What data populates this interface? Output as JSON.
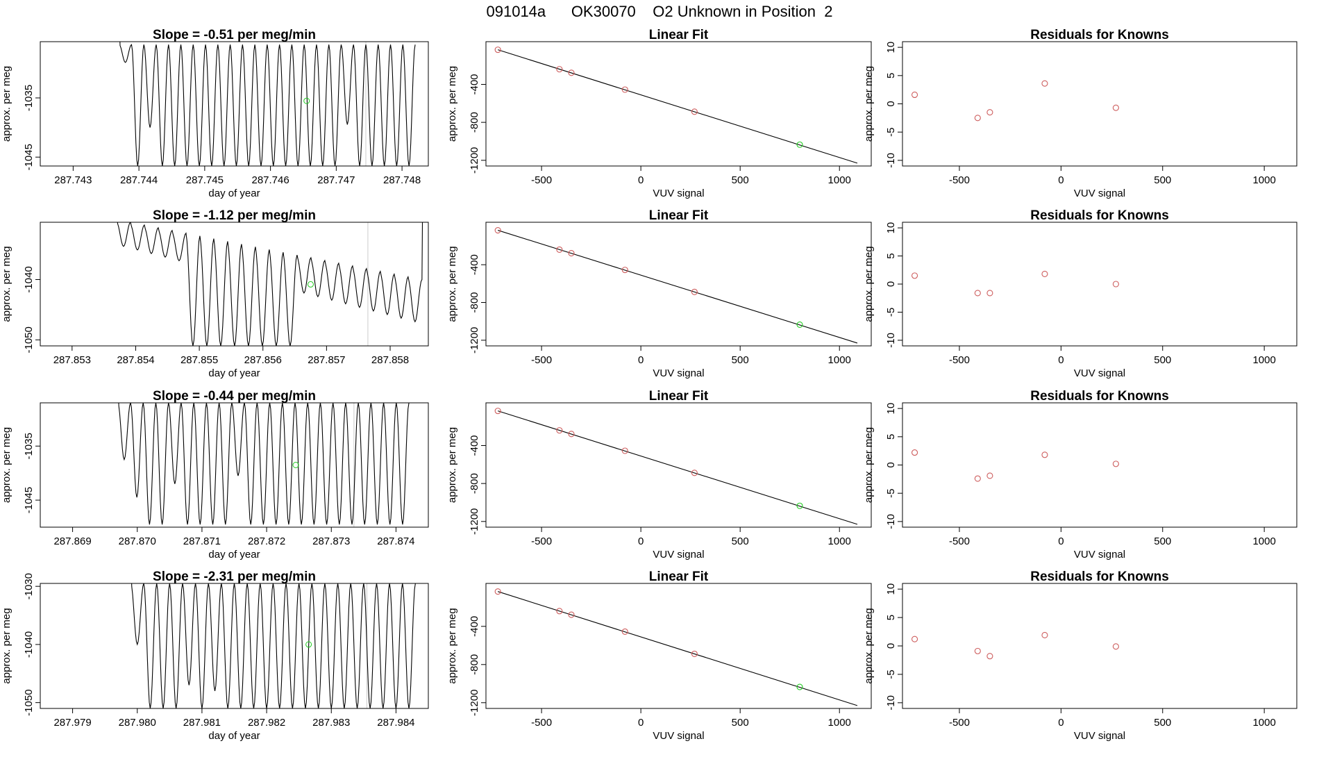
{
  "page": {
    "title": "091014a      OK30070    O2 Unknown in Position  2"
  },
  "colors": {
    "axis": "#000000",
    "trace": "#000000",
    "known_point": "#cd5c5c",
    "unknown_point": "#22cc22",
    "marker_line": "#cccccc"
  },
  "chart_data": [
    {
      "type": "line",
      "row": 0,
      "col": 0,
      "title": "Slope =  -0.51  per meg/min",
      "xlabel": "day of year",
      "ylabel": "approx. per meg",
      "xlim": [
        287.7425,
        287.7484
      ],
      "ylim": [
        -1046.5,
        -1025.5
      ],
      "xticks": [
        287.743,
        287.744,
        287.745,
        287.746,
        287.747,
        287.748
      ],
      "xtick_labels": [
        "287.743",
        "287.744",
        "287.745",
        "287.746",
        "287.747",
        "287.748"
      ],
      "yticks": [
        -1035,
        -1045
      ],
      "ytick_labels": [
        "-1035",
        "-1045"
      ],
      "trace": {
        "start_x": 287.7437,
        "end_x": 287.7482,
        "cycles": 24,
        "max": -1026.0,
        "min": -1046.5,
        "first_dip": -1029.0,
        "low_mins": {
          "2": -1040.0,
          "18": -1039.5
        }
      },
      "marker_x": 287.74745,
      "unknown_point": {
        "x": 287.74655,
        "y": -1035.5
      }
    },
    {
      "type": "scatter",
      "row": 0,
      "col": 1,
      "title": "Linear Fit",
      "xlabel": "VUV signal",
      "ylabel": "approx. per meg",
      "xlim": [
        -780,
        1160
      ],
      "ylim": [
        -1260,
        50
      ],
      "xticks": [
        -500,
        0,
        500,
        1000
      ],
      "xtick_labels": [
        "-500",
        "0",
        "500",
        "1000"
      ],
      "yticks": [
        -400,
        -800,
        -1200
      ],
      "ytick_labels": [
        "-400",
        "-800",
        "-1200"
      ],
      "fit_line": {
        "x": [
          -720,
          1090
        ],
        "y": [
          -35,
          -1230
        ]
      },
      "known": {
        "x": [
          -720,
          -410,
          -350,
          -80,
          270
        ],
        "y": [
          -35,
          -240,
          -278,
          -455,
          -688
        ]
      },
      "unknown": {
        "x": [
          800
        ],
        "y": [
          -1035
        ]
      }
    },
    {
      "type": "scatter",
      "row": 0,
      "col": 2,
      "title": "Residuals for Knowns",
      "xlabel": "VUV signal",
      "ylabel": "approx. per meg",
      "xlim": [
        -780,
        1160
      ],
      "ylim": [
        -11,
        11
      ],
      "xticks": [
        -500,
        0,
        500,
        1000
      ],
      "xtick_labels": [
        "-500",
        "0",
        "500",
        "1000"
      ],
      "yticks": [
        10,
        5,
        0,
        -5,
        -10
      ],
      "ytick_labels": [
        "10",
        "5",
        "0",
        "-5",
        "-10"
      ],
      "known": {
        "x": [
          -720,
          -410,
          -350,
          -80,
          270
        ],
        "y": [
          1.6,
          -2.5,
          -1.5,
          3.6,
          -0.7
        ]
      }
    },
    {
      "type": "line",
      "row": 1,
      "col": 0,
      "title": "Slope =  -1.12  per meg/min",
      "xlabel": "day of year",
      "ylabel": "approx. per meg",
      "xlim": [
        287.8525,
        287.8586
      ],
      "ylim": [
        -1051,
        -1030.5
      ],
      "xticks": [
        287.853,
        287.854,
        287.855,
        287.856,
        287.857,
        287.858
      ],
      "xtick_labels": [
        "287.853",
        "287.854",
        "287.855",
        "287.856",
        "287.857",
        "287.858"
      ],
      "yticks": [
        -1040,
        -1050
      ],
      "ytick_labels": [
        "-1040",
        "-1050"
      ],
      "trace": {
        "start_x": 287.8537,
        "end_x": 287.8585,
        "cycles": 22,
        "min_start": -1034.5,
        "min_end": -1047.0,
        "max_start": -1030.5,
        "max_end": -1040.0,
        "deep_from": 5,
        "deep_to": 12,
        "deep_min": -1051.0,
        "final_rise": -1030.5
      },
      "marker_x": 287.85765,
      "unknown_point": {
        "x": 287.85675,
        "y": -1040.8
      }
    },
    {
      "type": "scatter",
      "row": 1,
      "col": 1,
      "title": "Linear Fit",
      "xlabel": "VUV signal",
      "ylabel": "approx. per meg",
      "xlim": [
        -780,
        1160
      ],
      "ylim": [
        -1260,
        50
      ],
      "xticks": [
        -500,
        0,
        500,
        1000
      ],
      "xtick_labels": [
        "-500",
        "0",
        "500",
        "1000"
      ],
      "yticks": [
        -400,
        -800,
        -1200
      ],
      "ytick_labels": [
        "-400",
        "-800",
        "-1200"
      ],
      "fit_line": {
        "x": [
          -720,
          1090
        ],
        "y": [
          -35,
          -1230
        ]
      },
      "known": {
        "x": [
          -720,
          -410,
          -350,
          -80,
          270
        ],
        "y": [
          -35,
          -240,
          -278,
          -455,
          -688
        ]
      },
      "unknown": {
        "x": [
          800
        ],
        "y": [
          -1035
        ]
      }
    },
    {
      "type": "scatter",
      "row": 1,
      "col": 2,
      "title": "Residuals for Knowns",
      "xlabel": "VUV signal",
      "ylabel": "approx. per meg",
      "xlim": [
        -780,
        1160
      ],
      "ylim": [
        -11,
        11
      ],
      "xticks": [
        -500,
        0,
        500,
        1000
      ],
      "xtick_labels": [
        "-500",
        "0",
        "500",
        "1000"
      ],
      "yticks": [
        10,
        5,
        0,
        -5,
        -10
      ],
      "ytick_labels": [
        "10",
        "5",
        "0",
        "-5",
        "-10"
      ],
      "known": {
        "x": [
          -720,
          -410,
          -350,
          -80,
          270
        ],
        "y": [
          1.5,
          -1.6,
          -1.6,
          1.8,
          0.0
        ]
      }
    },
    {
      "type": "line",
      "row": 2,
      "col": 0,
      "title": "Slope =  -0.44  per meg/min",
      "xlabel": "day of year",
      "ylabel": "approx. per meg",
      "xlim": [
        287.8685,
        287.8745
      ],
      "ylim": [
        -1050,
        -1027
      ],
      "xticks": [
        287.869,
        287.87,
        287.871,
        287.872,
        287.873,
        287.874
      ],
      "xtick_labels": [
        "287.869",
        "287.870",
        "287.871",
        "287.872",
        "287.873",
        "287.874"
      ],
      "yticks": [
        -1035,
        -1045
      ],
      "ytick_labels": [
        "-1035",
        "-1045"
      ],
      "trace": {
        "start_x": 287.8697,
        "end_x": 287.8742,
        "cycles": 23,
        "max": -1027.0,
        "min": -1049.5,
        "first_dip": -1037.5,
        "low_mins": {
          "1": -1044.5,
          "4": -1042.0,
          "9": -1040.5
        }
      },
      "marker_x": 287.87335,
      "unknown_point": {
        "x": 287.87245,
        "y": -1038.5
      }
    },
    {
      "type": "scatter",
      "row": 2,
      "col": 1,
      "title": "Linear Fit",
      "xlabel": "VUV signal",
      "ylabel": "approx. per meg",
      "xlim": [
        -780,
        1160
      ],
      "ylim": [
        -1260,
        50
      ],
      "xticks": [
        -500,
        0,
        500,
        1000
      ],
      "xtick_labels": [
        "-500",
        "0",
        "500",
        "1000"
      ],
      "yticks": [
        -400,
        -800,
        -1200
      ],
      "ytick_labels": [
        "-400",
        "-800",
        "-1200"
      ],
      "fit_line": {
        "x": [
          -720,
          1090
        ],
        "y": [
          -35,
          -1230
        ]
      },
      "known": {
        "x": [
          -720,
          -410,
          -350,
          -80,
          270
        ],
        "y": [
          -35,
          -240,
          -278,
          -455,
          -688
        ]
      },
      "unknown": {
        "x": [
          800
        ],
        "y": [
          -1035
        ]
      }
    },
    {
      "type": "scatter",
      "row": 2,
      "col": 2,
      "title": "Residuals for Knowns",
      "xlabel": "VUV signal",
      "ylabel": "approx. per meg",
      "xlim": [
        -780,
        1160
      ],
      "ylim": [
        -11,
        11
      ],
      "xticks": [
        -500,
        0,
        500,
        1000
      ],
      "xtick_labels": [
        "-500",
        "0",
        "500",
        "1000"
      ],
      "yticks": [
        10,
        5,
        0,
        -5,
        -10
      ],
      "ytick_labels": [
        "10",
        "5",
        "0",
        "-5",
        "-10"
      ],
      "known": {
        "x": [
          -720,
          -410,
          -350,
          -80,
          270
        ],
        "y": [
          2.2,
          -2.4,
          -1.9,
          1.8,
          0.2
        ]
      }
    },
    {
      "type": "line",
      "row": 3,
      "col": 0,
      "title": "Slope =  -2.31  per meg/min",
      "xlabel": "day of year",
      "ylabel": "approx. per meg",
      "xlim": [
        287.9785,
        287.9845
      ],
      "ylim": [
        -1051,
        -1029.5
      ],
      "xticks": [
        287.979,
        287.98,
        287.981,
        287.982,
        287.983,
        287.984
      ],
      "xtick_labels": [
        "287.979",
        "287.980",
        "287.981",
        "287.982",
        "287.983",
        "287.984"
      ],
      "yticks": [
        -1030,
        -1040,
        -1050
      ],
      "ytick_labels": [
        "-1030",
        "-1040",
        "-1050"
      ],
      "trace": {
        "start_x": 287.9799,
        "end_x": 287.9843,
        "cycles": 22,
        "max": -1029.5,
        "min": -1051.0,
        "first_dip": -1040.0,
        "low_mins": {
          "4": -1047.0,
          "6": -1048.0
        },
        "final_rise": -1029.5
      },
      "marker_x": 287.98355,
      "unknown_point": {
        "x": 287.98265,
        "y": -1040.0
      }
    },
    {
      "type": "scatter",
      "row": 3,
      "col": 1,
      "title": "Linear Fit",
      "xlabel": "VUV signal",
      "ylabel": "approx. per meg",
      "xlim": [
        -780,
        1160
      ],
      "ylim": [
        -1260,
        50
      ],
      "xticks": [
        -500,
        0,
        500,
        1000
      ],
      "xtick_labels": [
        "-500",
        "0",
        "500",
        "1000"
      ],
      "yticks": [
        -400,
        -800,
        -1200
      ],
      "ytick_labels": [
        "-400",
        "-800",
        "-1200"
      ],
      "fit_line": {
        "x": [
          -720,
          1090
        ],
        "y": [
          -35,
          -1230
        ]
      },
      "known": {
        "x": [
          -720,
          -410,
          -350,
          -80,
          270
        ],
        "y": [
          -35,
          -240,
          -278,
          -455,
          -688
        ]
      },
      "unknown": {
        "x": [
          800
        ],
        "y": [
          -1035
        ]
      }
    },
    {
      "type": "scatter",
      "row": 3,
      "col": 2,
      "title": "Residuals for Knowns",
      "xlabel": "VUV signal",
      "ylabel": "approx. per meg",
      "xlim": [
        -780,
        1160
      ],
      "ylim": [
        -11,
        11
      ],
      "xticks": [
        -500,
        0,
        500,
        1000
      ],
      "xtick_labels": [
        "-500",
        "0",
        "500",
        "1000"
      ],
      "yticks": [
        10,
        5,
        0,
        -5,
        -10
      ],
      "ytick_labels": [
        "10",
        "5",
        "0",
        "-5",
        "-10"
      ],
      "known": {
        "x": [
          -720,
          -410,
          -350,
          -80,
          270
        ],
        "y": [
          1.2,
          -0.9,
          -1.8,
          1.9,
          -0.1
        ]
      }
    }
  ]
}
